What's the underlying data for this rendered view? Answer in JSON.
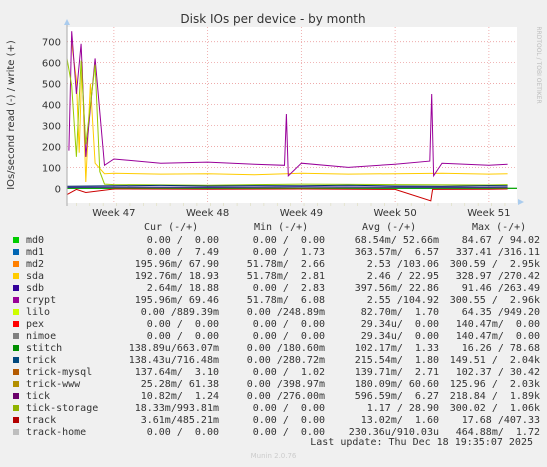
{
  "chart_data": {
    "type": "line",
    "title": "Disk IOs per device - by month",
    "ylabel": "IOs/second read (-) / write (+)",
    "side_label": "RRDTOOL / TOBI OETIKER",
    "ylim": [
      -70,
      770
    ],
    "yticks": [
      0,
      100,
      200,
      300,
      400,
      500,
      600,
      700
    ],
    "xticks": [
      {
        "label": "Week 47",
        "week": 47
      },
      {
        "label": "Week 48",
        "week": 48
      },
      {
        "label": "Week 49",
        "week": 49
      },
      {
        "label": "Week 50",
        "week": 50
      },
      {
        "label": "Week 51",
        "week": 51
      }
    ],
    "xlim": [
      46.5,
      51.3
    ],
    "grid": true,
    "series": [
      {
        "name": "md0",
        "color": "#00cc00",
        "x": [
          46.5,
          47,
          48,
          49,
          50,
          51,
          51.3
        ],
        "y": [
          0,
          0,
          0,
          0,
          0,
          0,
          0
        ]
      },
      {
        "name": "sda",
        "color": "#ffcc00",
        "x": [
          46.55,
          46.6,
          46.63,
          46.66,
          46.7,
          46.75,
          46.8,
          46.9,
          47,
          47.5,
          48,
          48.5,
          49,
          49.5,
          50,
          50.5,
          51,
          51.2
        ],
        "y": [
          690,
          520,
          170,
          600,
          30,
          500,
          120,
          70,
          72,
          68,
          70,
          65,
          72,
          68,
          70,
          72,
          68,
          70
        ]
      },
      {
        "name": "crypt",
        "color": "#990099",
        "x": [
          46.52,
          46.55,
          46.6,
          46.65,
          46.7,
          46.8,
          46.9,
          47,
          47.5,
          48,
          48.5,
          48.82,
          48.84,
          48.86,
          49,
          49.5,
          50,
          50.37,
          50.39,
          50.41,
          50.5,
          51,
          51.2
        ],
        "y": [
          180,
          750,
          450,
          690,
          150,
          620,
          110,
          140,
          120,
          125,
          115,
          110,
          355,
          60,
          120,
          100,
          115,
          130,
          450,
          60,
          120,
          110,
          115
        ]
      },
      {
        "name": "tick-storage",
        "color": "#99cc00",
        "x": [
          46.5,
          46.55,
          46.6,
          46.65,
          46.7,
          46.8,
          46.85,
          46.9,
          47,
          48,
          49,
          50,
          51,
          51.2
        ],
        "y": [
          620,
          490,
          150,
          610,
          210,
          590,
          80,
          20,
          18,
          15,
          20,
          18,
          16,
          18
        ]
      },
      {
        "name": "trick",
        "color": "#003366",
        "x": [
          46.5,
          47,
          47.5,
          48,
          48.5,
          49,
          49.5,
          50,
          50.5,
          51,
          51.2
        ],
        "y": [
          10,
          12,
          14,
          11,
          13,
          12,
          15,
          11,
          10,
          13,
          12
        ]
      },
      {
        "name": "tick",
        "color": "#330099",
        "x": [
          46.5,
          47,
          48,
          49,
          50,
          51,
          51.2
        ],
        "y": [
          5,
          6,
          5,
          7,
          6,
          5,
          6
        ]
      },
      {
        "name": "track",
        "color": "#cc0000",
        "x": [
          46.5,
          46.6,
          46.7,
          47,
          48,
          49,
          50,
          50.38,
          50.4,
          51,
          51.2
        ],
        "y": [
          -30,
          -5,
          -20,
          -3,
          -4,
          -3,
          -5,
          -60,
          -5,
          -4,
          -3
        ]
      }
    ]
  },
  "legend": {
    "headers": {
      "cur": "Cur (-/+)",
      "min": "Min (-/+)",
      "avg": "Avg (-/+)",
      "max": "Max (-/+)"
    },
    "rows": [
      {
        "name": "md0",
        "color": "#00cc00",
        "cur": "0.00 /  0.00",
        "min": "0.00 /  0.00",
        "avg": "68.54m/ 52.66m",
        "max": "84.67 / 94.02"
      },
      {
        "name": "md1",
        "color": "#0066b3",
        "cur": "0.00 /  7.49",
        "min": "0.00 /  1.73",
        "avg": "363.57m/  6.57",
        "max": "337.41 /316.11"
      },
      {
        "name": "md2",
        "color": "#ff8000",
        "cur": "195.96m/ 67.90",
        "min": "51.78m/  2.66",
        "avg": "2.53 /103.06",
        "max": "300.59 /  2.95k"
      },
      {
        "name": "sda",
        "color": "#ffcc00",
        "cur": "192.76m/ 18.93",
        "min": "51.78m/  2.81",
        "avg": "2.46 / 22.95",
        "max": "328.97 /270.42"
      },
      {
        "name": "sdb",
        "color": "#330099",
        "cur": "2.64m/ 18.88",
        "min": "0.00 /  2.83",
        "avg": "397.56m/ 22.86",
        "max": "91.46 /263.49"
      },
      {
        "name": "crypt",
        "color": "#990099",
        "cur": "195.96m/ 69.46",
        "min": "51.78m/  6.08",
        "avg": "2.55 /104.92",
        "max": "300.55 /  2.96k"
      },
      {
        "name": "lilo",
        "color": "#ccff00",
        "cur": "0.00 /889.39m",
        "min": "0.00 /248.89m",
        "avg": "82.70m/  1.70",
        "max": "64.35 /949.20"
      },
      {
        "name": "pex",
        "color": "#ff0000",
        "cur": "0.00 /  0.00",
        "min": "0.00 /  0.00",
        "avg": "29.34u/  0.00",
        "max": "140.47m/  0.00"
      },
      {
        "name": "nimoe",
        "color": "#808080",
        "cur": "0.00 /  0.00",
        "min": "0.00 /  0.00",
        "avg": "29.34u/  0.00",
        "max": "140.47m/  0.00"
      },
      {
        "name": "stitch",
        "color": "#008f00",
        "cur": "138.89u/663.07m",
        "min": "0.00 /180.60m",
        "avg": "102.17m/  1.33",
        "max": "16.26 / 78.68"
      },
      {
        "name": "trick",
        "color": "#00487d",
        "cur": "138.43u/716.48m",
        "min": "0.00 /280.72m",
        "avg": "215.54m/  1.80",
        "max": "149.51 /  2.04k"
      },
      {
        "name": "trick-mysql",
        "color": "#b35a00",
        "cur": "137.64m/  3.10",
        "min": "0.00 /  1.02",
        "avg": "139.71m/  2.71",
        "max": "102.37 / 30.42"
      },
      {
        "name": "trick-www",
        "color": "#b38f00",
        "cur": "25.28m/ 61.38",
        "min": "0.00 /398.97m",
        "avg": "180.09m/ 60.60",
        "max": "125.96 /  2.03k"
      },
      {
        "name": "tick",
        "color": "#6b006b",
        "cur": "10.82m/  1.24",
        "min": "0.00 /276.00m",
        "avg": "596.59m/  6.27",
        "max": "218.84 /  1.89k"
      },
      {
        "name": "tick-storage",
        "color": "#8fb300",
        "cur": "18.33m/993.81m",
        "min": "0.00 /  0.00",
        "avg": "1.17 / 28.90",
        "max": "300.02 /  1.06k"
      },
      {
        "name": "track",
        "color": "#b30000",
        "cur": "3.61m/485.21m",
        "min": "0.00 /  0.00",
        "avg": "13.02m/  1.60",
        "max": "17.68 /407.33"
      },
      {
        "name": "track-home",
        "color": "#bebebe",
        "cur": "0.00 /  0.00",
        "min": "0.00 /  0.00",
        "avg": "230.36u/910.03u",
        "max": "464.88m/  1.72"
      }
    ]
  },
  "last_update": "Last update: Thu Dec 18 19:35:07 2025",
  "footer": "Munin 2.0.76"
}
